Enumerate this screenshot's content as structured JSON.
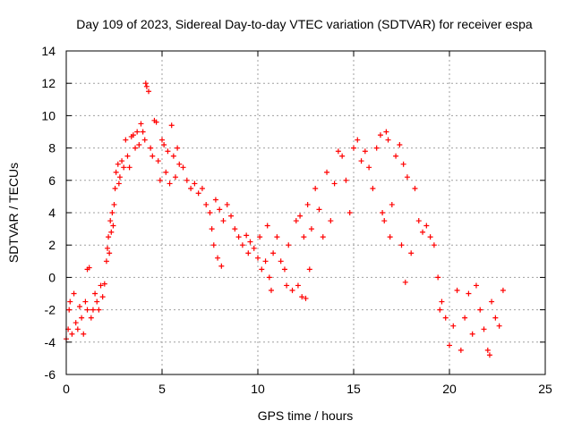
{
  "chart_data": {
    "type": "scatter",
    "title": "Day 109 of 2023, Sidereal Day-to-day VTEC variation (SDTVAR) for receiver espa",
    "xlabel": "GPS time / hours",
    "ylabel": "SDTVAR / TECUs",
    "xlim": [
      0,
      25
    ],
    "ylim": [
      -6,
      14
    ],
    "xticks": [
      "0",
      "5",
      "10",
      "15",
      "20",
      "25"
    ],
    "yticks": [
      "-6",
      "-4",
      "-2",
      "0",
      "2",
      "4",
      "6",
      "8",
      "10",
      "12",
      "14"
    ],
    "grid": true,
    "marker": "+",
    "series_color": "#ff0000",
    "series": [
      {
        "name": "SDTVAR",
        "points": [
          [
            0.0,
            -3.8
          ],
          [
            0.1,
            -3.2
          ],
          [
            0.15,
            -2.0
          ],
          [
            0.2,
            -1.5
          ],
          [
            0.3,
            -3.5
          ],
          [
            0.4,
            -1.0
          ],
          [
            0.5,
            -2.8
          ],
          [
            0.6,
            -3.2
          ],
          [
            0.7,
            -1.8
          ],
          [
            0.8,
            -2.5
          ],
          [
            0.9,
            -3.5
          ],
          [
            1.0,
            -1.5
          ],
          [
            1.1,
            -2.0
          ],
          [
            1.1,
            0.5
          ],
          [
            1.2,
            0.6
          ],
          [
            1.3,
            -2.5
          ],
          [
            1.4,
            -2.0
          ],
          [
            1.5,
            -1.0
          ],
          [
            1.6,
            -1.5
          ],
          [
            1.7,
            -2.0
          ],
          [
            1.8,
            -0.5
          ],
          [
            1.9,
            -1.2
          ],
          [
            2.0,
            -0.4
          ],
          [
            2.1,
            1.0
          ],
          [
            2.15,
            1.8
          ],
          [
            2.2,
            2.5
          ],
          [
            2.25,
            1.5
          ],
          [
            2.3,
            3.5
          ],
          [
            2.35,
            2.8
          ],
          [
            2.4,
            4.0
          ],
          [
            2.45,
            3.2
          ],
          [
            2.5,
            4.5
          ],
          [
            2.55,
            5.5
          ],
          [
            2.6,
            6.5
          ],
          [
            2.7,
            7.0
          ],
          [
            2.75,
            5.8
          ],
          [
            2.8,
            6.2
          ],
          [
            2.9,
            7.2
          ],
          [
            3.0,
            6.8
          ],
          [
            3.1,
            8.5
          ],
          [
            3.2,
            7.5
          ],
          [
            3.3,
            6.8
          ],
          [
            3.4,
            8.7
          ],
          [
            3.5,
            8.8
          ],
          [
            3.6,
            8.0
          ],
          [
            3.7,
            9.0
          ],
          [
            3.8,
            8.2
          ],
          [
            3.9,
            9.5
          ],
          [
            4.0,
            9.0
          ],
          [
            4.1,
            8.5
          ],
          [
            4.15,
            12.0
          ],
          [
            4.2,
            11.8
          ],
          [
            4.3,
            11.5
          ],
          [
            4.4,
            8.0
          ],
          [
            4.5,
            7.5
          ],
          [
            4.6,
            9.7
          ],
          [
            4.7,
            9.6
          ],
          [
            4.8,
            7.2
          ],
          [
            4.9,
            6.0
          ],
          [
            5.0,
            8.5
          ],
          [
            5.1,
            8.2
          ],
          [
            5.2,
            6.5
          ],
          [
            5.3,
            7.8
          ],
          [
            5.4,
            5.8
          ],
          [
            5.5,
            9.4
          ],
          [
            5.6,
            7.5
          ],
          [
            5.7,
            6.2
          ],
          [
            5.8,
            8.0
          ],
          [
            5.9,
            7.0
          ],
          [
            6.1,
            6.8
          ],
          [
            6.3,
            6.0
          ],
          [
            6.5,
            5.5
          ],
          [
            6.7,
            5.8
          ],
          [
            6.9,
            5.2
          ],
          [
            7.1,
            5.5
          ],
          [
            7.3,
            4.5
          ],
          [
            7.5,
            4.0
          ],
          [
            7.6,
            3.0
          ],
          [
            7.7,
            2.0
          ],
          [
            7.8,
            4.8
          ],
          [
            7.9,
            1.2
          ],
          [
            8.0,
            4.2
          ],
          [
            8.1,
            0.7
          ],
          [
            8.2,
            3.5
          ],
          [
            8.4,
            4.5
          ],
          [
            8.6,
            3.8
          ],
          [
            8.8,
            3.0
          ],
          [
            9.0,
            2.5
          ],
          [
            9.2,
            2.0
          ],
          [
            9.4,
            2.6
          ],
          [
            9.5,
            1.5
          ],
          [
            9.6,
            2.2
          ],
          [
            9.8,
            1.8
          ],
          [
            10.0,
            1.2
          ],
          [
            10.1,
            2.5
          ],
          [
            10.2,
            0.5
          ],
          [
            10.4,
            1.0
          ],
          [
            10.5,
            3.2
          ],
          [
            10.6,
            0.0
          ],
          [
            10.7,
            -0.8
          ],
          [
            10.8,
            1.5
          ],
          [
            11.0,
            2.5
          ],
          [
            11.2,
            1.0
          ],
          [
            11.4,
            0.5
          ],
          [
            11.5,
            -0.5
          ],
          [
            11.6,
            2.0
          ],
          [
            11.8,
            -0.8
          ],
          [
            12.0,
            3.5
          ],
          [
            12.1,
            -0.5
          ],
          [
            12.2,
            3.8
          ],
          [
            12.3,
            -1.2
          ],
          [
            12.4,
            2.5
          ],
          [
            12.5,
            -1.3
          ],
          [
            12.6,
            4.5
          ],
          [
            12.7,
            0.5
          ],
          [
            12.8,
            3.0
          ],
          [
            13.0,
            5.5
          ],
          [
            13.2,
            4.2
          ],
          [
            13.4,
            2.5
          ],
          [
            13.6,
            6.5
          ],
          [
            13.8,
            3.5
          ],
          [
            14.0,
            5.8
          ],
          [
            14.2,
            7.8
          ],
          [
            14.4,
            7.5
          ],
          [
            14.6,
            6.0
          ],
          [
            14.8,
            4.0
          ],
          [
            15.0,
            8.0
          ],
          [
            15.2,
            8.5
          ],
          [
            15.4,
            7.2
          ],
          [
            15.6,
            7.8
          ],
          [
            15.8,
            6.8
          ],
          [
            16.0,
            5.5
          ],
          [
            16.2,
            8.0
          ],
          [
            16.4,
            8.8
          ],
          [
            16.5,
            4.0
          ],
          [
            16.6,
            3.5
          ],
          [
            16.7,
            9.0
          ],
          [
            16.8,
            8.5
          ],
          [
            16.9,
            2.5
          ],
          [
            17.0,
            4.5
          ],
          [
            17.2,
            7.5
          ],
          [
            17.4,
            8.2
          ],
          [
            17.5,
            2.0
          ],
          [
            17.6,
            7.0
          ],
          [
            17.7,
            -0.3
          ],
          [
            17.8,
            6.2
          ],
          [
            18.0,
            1.5
          ],
          [
            18.2,
            5.5
          ],
          [
            18.4,
            3.5
          ],
          [
            18.6,
            2.8
          ],
          [
            18.8,
            3.2
          ],
          [
            19.0,
            2.5
          ],
          [
            19.2,
            2.0
          ],
          [
            19.4,
            0.0
          ],
          [
            19.5,
            -2.0
          ],
          [
            19.6,
            -1.5
          ],
          [
            19.8,
            -2.5
          ],
          [
            20.0,
            -4.2
          ],
          [
            20.2,
            -3.0
          ],
          [
            20.4,
            -0.8
          ],
          [
            20.6,
            -4.5
          ],
          [
            20.8,
            -2.5
          ],
          [
            21.0,
            -1.0
          ],
          [
            21.2,
            -3.5
          ],
          [
            21.4,
            -0.5
          ],
          [
            21.6,
            -2.0
          ],
          [
            21.8,
            -3.2
          ],
          [
            22.0,
            -4.5
          ],
          [
            22.1,
            -4.8
          ],
          [
            22.2,
            -1.5
          ],
          [
            22.4,
            -2.5
          ],
          [
            22.6,
            -3.0
          ],
          [
            22.8,
            -0.8
          ]
        ]
      }
    ]
  }
}
